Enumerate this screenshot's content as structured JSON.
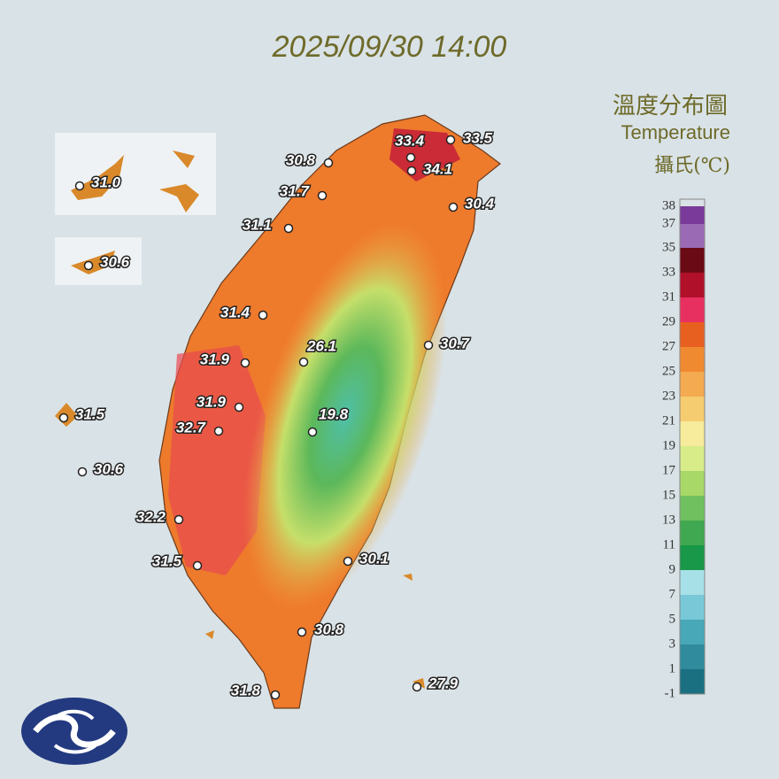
{
  "title": "2025/09/30 14:00",
  "legend": {
    "title": "溫度分布圖",
    "subtitle": "Temperature",
    "unit": "攝氏(℃)",
    "ticks": [
      38,
      37,
      35,
      33,
      31,
      29,
      27,
      25,
      23,
      21,
      19,
      17,
      15,
      13,
      11,
      9,
      7,
      5,
      3,
      1,
      -1
    ]
  },
  "stations": [
    "30.8",
    "33.4",
    "33.5",
    "34.1",
    "31.7",
    "30.4",
    "31.1",
    "31.4",
    "26.1",
    "30.7",
    "31.9",
    "31.9",
    "19.8",
    "32.7",
    "32.2",
    "31.5",
    "30.1",
    "30.8",
    "31.8",
    "27.9",
    "31.0",
    "30.6",
    "31.5",
    "30.6"
  ]
}
